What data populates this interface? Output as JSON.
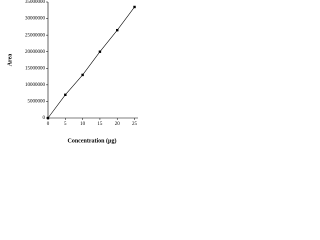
{
  "chart_data": {
    "type": "scatter",
    "x_label": "Concentration (µg)",
    "y_label": "Area",
    "x": [
      0,
      5,
      10,
      15,
      20,
      25
    ],
    "series": [
      {
        "name": "Area",
        "color": "#000000",
        "values": [
          0,
          7000000,
          13000000,
          20000000,
          26500000,
          33500000
        ]
      }
    ],
    "xlim": [
      0,
      26
    ],
    "xticks": [
      0,
      5,
      10,
      15,
      20,
      25
    ],
    "ylim": [
      0,
      35000000
    ],
    "yticks": [
      0,
      5000000,
      10000000,
      15000000,
      20000000,
      25000000,
      30000000,
      35000000
    ],
    "trendline": true
  }
}
